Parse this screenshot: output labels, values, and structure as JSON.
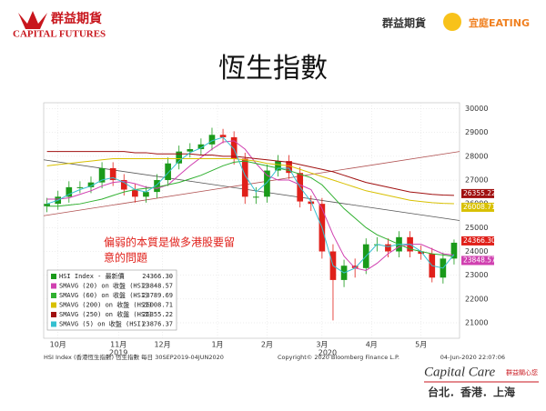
{
  "header": {
    "brand": "群益期貨",
    "brand_en": "CAPITAL FUTURES",
    "right_brand": "群益期貨",
    "right_sub": "宜庭EATING"
  },
  "chart_data": {
    "type": "candlestick",
    "title": "恆生指數",
    "annotation": [
      "偏弱的本質是做多港股要留",
      "意的問題"
    ],
    "ylim": [
      20350,
      30250
    ],
    "yticks": [
      21000,
      22000,
      23000,
      24000,
      25000,
      26000,
      27000,
      28000,
      29000,
      30000
    ],
    "xlim": [
      -0.3,
      37.5
    ],
    "xticks": [
      {
        "value": 1,
        "label": "10月"
      },
      {
        "value": 6.5,
        "label": "11月"
      },
      {
        "value": 10.5,
        "label": "12月"
      },
      {
        "value": 15.5,
        "label": "1月"
      },
      {
        "value": 20,
        "label": "2月"
      },
      {
        "value": 25,
        "label": "3月"
      },
      {
        "value": 29.5,
        "label": "4月"
      },
      {
        "value": 34,
        "label": "5月"
      }
    ],
    "years": [
      {
        "value": 6.5,
        "label": "2019"
      },
      {
        "value": 25.5,
        "label": "2020"
      }
    ],
    "up_color": "#1a9a1a",
    "down_color": "#e0201a",
    "candles": {
      "open": [
        25900,
        26000,
        26300,
        26700,
        26700,
        26900,
        27500,
        27000,
        26600,
        26300,
        26500,
        27000,
        27700,
        28200,
        28300,
        28500,
        28900,
        28800,
        27900,
        26300,
        26300,
        27400,
        27800,
        27300,
        26100,
        26000,
        24000,
        22800,
        23400,
        23300,
        24300,
        24300,
        24000,
        24600,
        24000,
        23900,
        22900,
        23700
      ],
      "high": [
        26250,
        26550,
        26950,
        26950,
        27150,
        27750,
        27750,
        27250,
        26850,
        26750,
        27250,
        27950,
        28450,
        28550,
        28750,
        29200,
        29150,
        29050,
        28150,
        26700,
        27650,
        28050,
        28050,
        27550,
        26350,
        26250,
        24300,
        23650,
        23700,
        24550,
        24600,
        24550,
        24850,
        24850,
        24250,
        24150,
        23950,
        24500
      ],
      "low": [
        25650,
        25750,
        26050,
        26450,
        26450,
        26650,
        26750,
        26350,
        26050,
        26050,
        26250,
        26750,
        27450,
        27950,
        28050,
        28250,
        28550,
        27650,
        26000,
        26000,
        26050,
        27150,
        27050,
        25850,
        25700,
        23700,
        21100,
        22500,
        22900,
        23050,
        24000,
        23750,
        23750,
        23750,
        23650,
        22700,
        22650,
        23450
      ],
      "close": [
        26000,
        26300,
        26700,
        26700,
        26900,
        27500,
        27000,
        26600,
        26300,
        26500,
        27000,
        27700,
        28200,
        28300,
        28500,
        28900,
        28800,
        27900,
        26300,
        26300,
        27400,
        27800,
        27300,
        26100,
        26000,
        24000,
        22800,
        23400,
        23300,
        24300,
        24300,
        24000,
        24600,
        24000,
        23900,
        22900,
        23700,
        24366
      ]
    },
    "legend": {
      "name": "HSI Index - 最新價",
      "last": "24366.30",
      "tag_color": "#e0201a"
    },
    "series": [
      {
        "name": "SMAVG (20)  on 收盤 (HSI)",
        "color": "#d040b0",
        "last": "23848.57",
        "tag": true,
        "values": [
          26200,
          26200,
          26250,
          26400,
          26550,
          26750,
          26900,
          26950,
          26850,
          26700,
          26650,
          26800,
          27200,
          27600,
          27950,
          28300,
          28600,
          28650,
          28300,
          27700,
          27200,
          27000,
          27000,
          26800,
          26600,
          25800,
          24700,
          23800,
          23300,
          23200,
          23500,
          23900,
          24200,
          24300,
          24300,
          24100,
          23900,
          23849
        ]
      },
      {
        "name": "SMAVG (60)  on 收盤 (HSI)",
        "color": "#30b030",
        "last": "23789.69",
        "tag": false,
        "values": [
          25900,
          25900,
          25950,
          26000,
          26100,
          26200,
          26350,
          26500,
          26600,
          26650,
          26700,
          26800,
          26900,
          27050,
          27200,
          27400,
          27600,
          27750,
          27800,
          27700,
          27600,
          27500,
          27400,
          27250,
          27100,
          26800,
          26300,
          25800,
          25400,
          25000,
          24700,
          24500,
          24300,
          24100,
          24000,
          23900,
          23850,
          23790
        ]
      },
      {
        "name": "SMAVG (200)  on 收盤 (HSI)",
        "color": "#d8c000",
        "last": "26008.71",
        "tag": true,
        "values": [
          27600,
          27650,
          27700,
          27750,
          27800,
          27850,
          27900,
          27900,
          27900,
          27900,
          27900,
          27900,
          27900,
          27900,
          27900,
          27900,
          27900,
          27900,
          27850,
          27800,
          27700,
          27650,
          27600,
          27450,
          27300,
          27150,
          27000,
          26850,
          26700,
          26550,
          26450,
          26350,
          26250,
          26150,
          26100,
          26050,
          26020,
          26009
        ]
      },
      {
        "name": "SMAVG (250)  on 收盤 (HSI)",
        "color": "#a01010",
        "last": "26355.22",
        "tag": true,
        "values": [
          28200,
          28200,
          28200,
          28200,
          28200,
          28200,
          28200,
          28200,
          28150,
          28150,
          28100,
          28100,
          28100,
          28100,
          28050,
          28050,
          28000,
          28000,
          27950,
          27900,
          27850,
          27800,
          27750,
          27650,
          27550,
          27450,
          27350,
          27200,
          27050,
          26900,
          26800,
          26700,
          26600,
          26500,
          26450,
          26400,
          26370,
          26355
        ]
      },
      {
        "name": "SMAVG (5)  on 收盤 (HSI)",
        "color": "#35c0d0",
        "last": "23876.37",
        "tag": false,
        "values": [
          26000,
          26150,
          26400,
          26600,
          26750,
          27000,
          27100,
          26900,
          26600,
          26500,
          26800,
          27300,
          27800,
          28150,
          28350,
          28650,
          28800,
          28300,
          27200,
          26500,
          26900,
          27500,
          27500,
          26700,
          26100,
          25000,
          23400,
          23100,
          23300,
          23800,
          24300,
          24200,
          24300,
          24300,
          24000,
          23400,
          23300,
          23876
        ]
      }
    ],
    "trendlines": [
      {
        "color": "#555555",
        "from": [
          -0.3,
          27850
        ],
        "to": [
          37.5,
          25300
        ]
      },
      {
        "color": "#b05050",
        "from": [
          -0.3,
          25500
        ],
        "to": [
          37.5,
          28200
        ]
      }
    ]
  },
  "footer": {
    "source": "HSI Index (香港恆生指數) 恆生指數  每日 30SEP2019-04JUN2020",
    "copyright": "Copyright© 2020 Bloomberg Finance L.P.",
    "stamp": "04-Jun-2020 22:07:06",
    "care": "Capital Care",
    "care_sub": "群益關心您",
    "cities": "台北．香港．上海"
  }
}
